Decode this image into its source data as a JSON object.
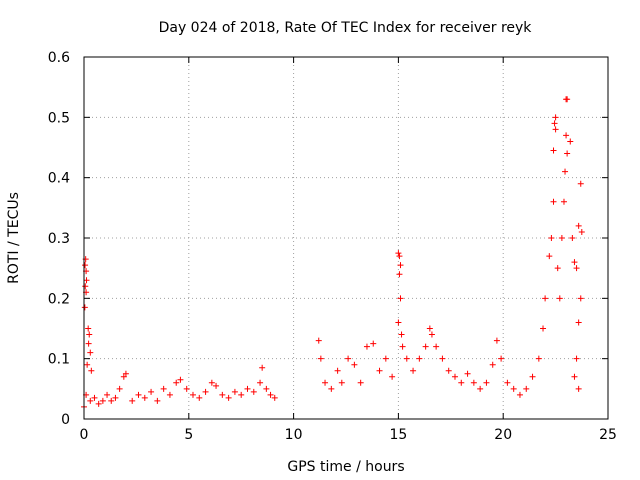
{
  "chart_data": {
    "type": "scatter",
    "title": "Day 024 of 2018, Rate Of TEC Index for receiver reyk",
    "xlabel": "GPS time / hours",
    "ylabel": "ROTI / TECUs",
    "xlim": [
      0,
      25
    ],
    "ylim": [
      0,
      0.6
    ],
    "xticks": [
      0,
      5,
      10,
      15,
      20,
      25
    ],
    "xtick_labels": [
      "0",
      "5",
      "10",
      "15",
      "20",
      "25"
    ],
    "yticks": [
      0,
      0.1,
      0.2,
      0.3,
      0.4,
      0.5,
      0.6
    ],
    "ytick_labels": [
      "0",
      "0.1",
      "0.2",
      "0.3",
      "0.4",
      "0.5",
      "0.6"
    ],
    "grid": true,
    "marker": "+",
    "color": "#ff0000",
    "series": [
      {
        "name": "ROTI",
        "points": [
          [
            0.05,
            0.255
          ],
          [
            0.08,
            0.265
          ],
          [
            0.1,
            0.245
          ],
          [
            0.12,
            0.23
          ],
          [
            0.06,
            0.22
          ],
          [
            0.1,
            0.21
          ],
          [
            0.04,
            0.185
          ],
          [
            0.2,
            0.15
          ],
          [
            0.25,
            0.14
          ],
          [
            0.22,
            0.125
          ],
          [
            0.3,
            0.11
          ],
          [
            0.15,
            0.09
          ],
          [
            0.35,
            0.08
          ],
          [
            0.0,
            0.02
          ],
          [
            0.1,
            0.04
          ],
          [
            0.3,
            0.03
          ],
          [
            0.5,
            0.035
          ],
          [
            0.7,
            0.025
          ],
          [
            0.9,
            0.03
          ],
          [
            1.1,
            0.04
          ],
          [
            1.3,
            0.03
          ],
          [
            1.5,
            0.035
          ],
          [
            1.7,
            0.05
          ],
          [
            1.9,
            0.07
          ],
          [
            2.0,
            0.075
          ],
          [
            2.3,
            0.03
          ],
          [
            2.6,
            0.04
          ],
          [
            2.9,
            0.035
          ],
          [
            3.2,
            0.045
          ],
          [
            3.5,
            0.03
          ],
          [
            3.8,
            0.05
          ],
          [
            4.1,
            0.04
          ],
          [
            4.4,
            0.06
          ],
          [
            4.6,
            0.065
          ],
          [
            4.9,
            0.05
          ],
          [
            5.2,
            0.04
          ],
          [
            5.5,
            0.035
          ],
          [
            5.8,
            0.045
          ],
          [
            6.1,
            0.06
          ],
          [
            6.3,
            0.055
          ],
          [
            6.6,
            0.04
          ],
          [
            6.9,
            0.035
          ],
          [
            7.2,
            0.045
          ],
          [
            7.5,
            0.04
          ],
          [
            7.8,
            0.05
          ],
          [
            8.1,
            0.045
          ],
          [
            8.4,
            0.06
          ],
          [
            8.5,
            0.085
          ],
          [
            8.7,
            0.05
          ],
          [
            8.9,
            0.04
          ],
          [
            9.1,
            0.035
          ],
          [
            11.2,
            0.13
          ],
          [
            11.3,
            0.1
          ],
          [
            11.5,
            0.06
          ],
          [
            11.8,
            0.05
          ],
          [
            12.1,
            0.08
          ],
          [
            12.3,
            0.06
          ],
          [
            12.6,
            0.1
          ],
          [
            12.9,
            0.09
          ],
          [
            13.2,
            0.06
          ],
          [
            13.5,
            0.12
          ],
          [
            13.8,
            0.125
          ],
          [
            14.1,
            0.08
          ],
          [
            14.4,
            0.1
          ],
          [
            14.7,
            0.07
          ],
          [
            15.0,
            0.275
          ],
          [
            15.05,
            0.27
          ],
          [
            15.1,
            0.255
          ],
          [
            15.05,
            0.24
          ],
          [
            15.1,
            0.2
          ],
          [
            15.0,
            0.16
          ],
          [
            15.15,
            0.14
          ],
          [
            15.2,
            0.12
          ],
          [
            15.4,
            0.1
          ],
          [
            15.7,
            0.08
          ],
          [
            16.0,
            0.1
          ],
          [
            16.3,
            0.12
          ],
          [
            16.5,
            0.15
          ],
          [
            16.6,
            0.14
          ],
          [
            16.8,
            0.12
          ],
          [
            17.1,
            0.1
          ],
          [
            17.4,
            0.08
          ],
          [
            17.7,
            0.07
          ],
          [
            18.0,
            0.06
          ],
          [
            18.3,
            0.075
          ],
          [
            18.6,
            0.06
          ],
          [
            18.9,
            0.05
          ],
          [
            19.2,
            0.06
          ],
          [
            19.5,
            0.09
          ],
          [
            19.7,
            0.13
          ],
          [
            19.9,
            0.1
          ],
          [
            20.2,
            0.06
          ],
          [
            20.5,
            0.05
          ],
          [
            20.8,
            0.04
          ],
          [
            21.1,
            0.05
          ],
          [
            21.4,
            0.07
          ],
          [
            21.7,
            0.1
          ],
          [
            21.9,
            0.15
          ],
          [
            22.0,
            0.2
          ],
          [
            22.2,
            0.27
          ],
          [
            22.3,
            0.3
          ],
          [
            22.4,
            0.36
          ],
          [
            22.4,
            0.445
          ],
          [
            22.45,
            0.49
          ],
          [
            22.5,
            0.5
          ],
          [
            22.5,
            0.48
          ],
          [
            22.6,
            0.25
          ],
          [
            22.7,
            0.2
          ],
          [
            22.8,
            0.3
          ],
          [
            22.9,
            0.36
          ],
          [
            22.95,
            0.41
          ],
          [
            23.0,
            0.47
          ],
          [
            23.05,
            0.44
          ],
          [
            23.0,
            0.53
          ],
          [
            23.05,
            0.53
          ],
          [
            23.2,
            0.46
          ],
          [
            23.3,
            0.3
          ],
          [
            23.4,
            0.26
          ],
          [
            23.5,
            0.25
          ],
          [
            23.6,
            0.32
          ],
          [
            23.7,
            0.39
          ],
          [
            23.75,
            0.31
          ],
          [
            23.7,
            0.2
          ],
          [
            23.6,
            0.16
          ],
          [
            23.5,
            0.1
          ],
          [
            23.4,
            0.07
          ],
          [
            23.6,
            0.05
          ]
        ]
      }
    ]
  }
}
